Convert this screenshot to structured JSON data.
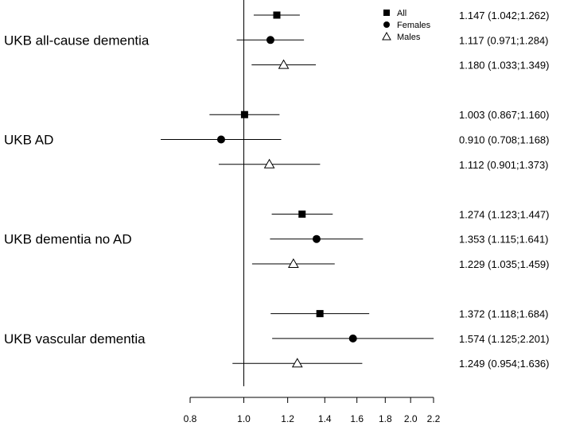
{
  "chart_data": {
    "type": "forest",
    "xscale": "log",
    "xlim": [
      0.8,
      2.2
    ],
    "x_ticks": [
      "0.8",
      "1.0",
      "1.2",
      "1.4",
      "1.6",
      "1.8",
      "2.0",
      "2.2"
    ],
    "x_tick_values": [
      0.8,
      1.0,
      1.2,
      1.4,
      1.6,
      1.8,
      2.0,
      2.2
    ],
    "reference_line": 1.0,
    "legend": {
      "placement": "top-right",
      "entries": [
        {
          "label": "All",
          "marker": "square-filled"
        },
        {
          "label": "Females",
          "marker": "circle-filled"
        },
        {
          "label": "Males",
          "marker": "triangle-open"
        }
      ]
    },
    "groups": [
      {
        "label": "UKB  all-cause dementia",
        "rows": [
          {
            "series": "All",
            "estimate": 1.147,
            "lower": 1.042,
            "upper": 1.262,
            "text": "1.147 (1.042;1.262)"
          },
          {
            "series": "Females",
            "estimate": 1.117,
            "lower": 0.971,
            "upper": 1.284,
            "text": "1.117 (0.971;1.284)"
          },
          {
            "series": "Males",
            "estimate": 1.18,
            "lower": 1.033,
            "upper": 1.349,
            "text": "1.180 (1.033;1.349)"
          }
        ]
      },
      {
        "label": "UKB  AD",
        "rows": [
          {
            "series": "All",
            "estimate": 1.003,
            "lower": 0.867,
            "upper": 1.16,
            "text": "1.003 (0.867;1.160)"
          },
          {
            "series": "Females",
            "estimate": 0.91,
            "lower": 0.708,
            "upper": 1.168,
            "text": "0.910 (0.708;1.168)"
          },
          {
            "series": "Males",
            "estimate": 1.112,
            "lower": 0.901,
            "upper": 1.373,
            "text": "1.112 (0.901;1.373)"
          }
        ]
      },
      {
        "label": "UKB  dementia no AD",
        "rows": [
          {
            "series": "All",
            "estimate": 1.274,
            "lower": 1.123,
            "upper": 1.447,
            "text": "1.274 (1.123;1.447)"
          },
          {
            "series": "Females",
            "estimate": 1.353,
            "lower": 1.115,
            "upper": 1.641,
            "text": "1.353 (1.115;1.641)"
          },
          {
            "series": "Males",
            "estimate": 1.229,
            "lower": 1.035,
            "upper": 1.459,
            "text": "1.229 (1.035;1.459)"
          }
        ]
      },
      {
        "label": "UKB  vascular dementia",
        "rows": [
          {
            "series": "All",
            "estimate": 1.372,
            "lower": 1.118,
            "upper": 1.684,
            "text": "1.372 (1.118;1.684)"
          },
          {
            "series": "Females",
            "estimate": 1.574,
            "lower": 1.125,
            "upper": 2.201,
            "text": "1.574 (1.125;2.201)"
          },
          {
            "series": "Males",
            "estimate": 1.249,
            "lower": 0.954,
            "upper": 1.636,
            "text": "1.249 (0.954;1.636)"
          }
        ]
      }
    ]
  }
}
